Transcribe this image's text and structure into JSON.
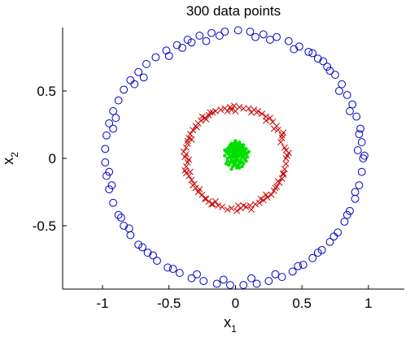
{
  "chart_data": {
    "type": "scatter",
    "title": "300 data points",
    "xlabel": {
      "base": "x",
      "sub": "1"
    },
    "ylabel": {
      "base": "x",
      "sub": "2"
    },
    "xlim": [
      -1.3,
      1.27
    ],
    "ylim": [
      -0.97,
      0.97
    ],
    "xticks": [
      -1,
      -0.5,
      0,
      0.5,
      1
    ],
    "yticks": [
      -0.5,
      0,
      0.5
    ],
    "xtick_labels": [
      "-1",
      "-0.5",
      "0",
      "0.5",
      "1"
    ],
    "ytick_labels": [
      "-0.5",
      "0",
      "0.5"
    ],
    "grid": false,
    "axes_box": "left-bottom",
    "series": [
      {
        "marker": "circle",
        "color": "#0000c8",
        "points": [
          [
            0.96,
            0.0
          ],
          [
            0.95,
            0.12
          ],
          [
            0.94,
            0.22
          ],
          [
            0.91,
            0.31
          ],
          [
            0.88,
            0.4
          ],
          [
            0.84,
            0.47
          ],
          [
            0.8,
            0.55
          ],
          [
            0.75,
            0.62
          ],
          [
            0.69,
            0.68
          ],
          [
            0.62,
            0.74
          ],
          [
            0.55,
            0.79
          ],
          [
            0.48,
            0.83
          ],
          [
            0.4,
            0.87
          ],
          [
            0.31,
            0.9
          ],
          [
            0.21,
            0.92
          ],
          [
            0.11,
            0.94
          ],
          [
            0.02,
            0.95
          ],
          [
            -0.08,
            0.94
          ],
          [
            -0.18,
            0.93
          ],
          [
            -0.27,
            0.91
          ],
          [
            -0.36,
            0.88
          ],
          [
            -0.44,
            0.84
          ],
          [
            -0.52,
            0.8
          ],
          [
            -0.6,
            0.75
          ],
          [
            -0.67,
            0.7
          ],
          [
            -0.73,
            0.64
          ],
          [
            -0.79,
            0.58
          ],
          [
            -0.84,
            0.51
          ],
          [
            -0.88,
            0.43
          ],
          [
            -0.92,
            0.35
          ],
          [
            -0.95,
            0.26
          ],
          [
            -0.97,
            0.17
          ],
          [
            -0.98,
            0.07
          ],
          [
            -0.98,
            -0.03
          ],
          [
            -0.97,
            -0.13
          ],
          [
            -0.95,
            -0.23
          ],
          [
            -0.92,
            -0.33
          ],
          [
            -0.88,
            -0.42
          ],
          [
            -0.84,
            -0.5
          ],
          [
            -0.79,
            -0.57
          ],
          [
            -0.73,
            -0.64
          ],
          [
            -0.66,
            -0.7
          ],
          [
            -0.59,
            -0.76
          ],
          [
            -0.51,
            -0.81
          ],
          [
            -0.42,
            -0.85
          ],
          [
            -0.33,
            -0.89
          ],
          [
            -0.24,
            -0.91
          ],
          [
            -0.14,
            -0.93
          ],
          [
            -0.04,
            -0.94
          ],
          [
            0.06,
            -0.94
          ],
          [
            0.16,
            -0.93
          ],
          [
            0.25,
            -0.91
          ],
          [
            0.35,
            -0.88
          ],
          [
            0.43,
            -0.84
          ],
          [
            0.51,
            -0.79
          ],
          [
            0.58,
            -0.74
          ],
          [
            0.65,
            -0.68
          ],
          [
            0.71,
            -0.62
          ],
          [
            0.77,
            -0.55
          ],
          [
            0.82,
            -0.47
          ],
          [
            0.86,
            -0.39
          ],
          [
            0.9,
            -0.3
          ],
          [
            0.93,
            -0.2
          ],
          [
            0.95,
            -0.1
          ],
          [
            0.92,
            0.06
          ],
          [
            0.86,
            0.35
          ],
          [
            0.71,
            0.65
          ],
          [
            0.44,
            0.81
          ],
          [
            0.15,
            0.9
          ],
          [
            -0.22,
            0.87
          ],
          [
            -0.5,
            0.76
          ],
          [
            -0.76,
            0.55
          ],
          [
            -0.92,
            0.22
          ],
          [
            -0.95,
            -0.1
          ],
          [
            -0.86,
            -0.44
          ],
          [
            -0.62,
            -0.72
          ],
          [
            -0.29,
            -0.86
          ],
          [
            0.12,
            -0.89
          ],
          [
            0.47,
            -0.8
          ],
          [
            0.74,
            -0.58
          ],
          [
            0.9,
            -0.25
          ],
          [
            0.93,
            0.18
          ],
          [
            0.78,
            0.5
          ],
          [
            0.58,
            0.78
          ],
          [
            0.26,
            0.88
          ],
          [
            -0.12,
            0.91
          ],
          [
            -0.4,
            0.82
          ],
          [
            -0.69,
            0.6
          ],
          [
            -0.9,
            0.3
          ],
          [
            -0.93,
            -0.2
          ],
          [
            -0.8,
            -0.52
          ],
          [
            -0.47,
            -0.82
          ],
          [
            -0.09,
            -0.9
          ],
          [
            0.3,
            -0.86
          ],
          [
            0.62,
            -0.7
          ],
          [
            0.84,
            -0.42
          ],
          [
            0.97,
            0.02
          ],
          [
            0.66,
            0.72
          ],
          [
            -0.33,
            0.86
          ],
          [
            -0.7,
            -0.66
          ]
        ]
      },
      {
        "marker": "x",
        "color": "#c80000",
        "points": [
          [
            0.38,
            0.0
          ],
          [
            0.37,
            0.08
          ],
          [
            0.35,
            0.15
          ],
          [
            0.32,
            0.21
          ],
          [
            0.28,
            0.27
          ],
          [
            0.23,
            0.31
          ],
          [
            0.17,
            0.35
          ],
          [
            0.1,
            0.37
          ],
          [
            0.03,
            0.38
          ],
          [
            -0.04,
            0.38
          ],
          [
            -0.11,
            0.36
          ],
          [
            -0.17,
            0.34
          ],
          [
            -0.23,
            0.3
          ],
          [
            -0.28,
            0.26
          ],
          [
            -0.32,
            0.21
          ],
          [
            -0.35,
            0.15
          ],
          [
            -0.37,
            0.08
          ],
          [
            -0.38,
            0.01
          ],
          [
            -0.37,
            -0.06
          ],
          [
            -0.35,
            -0.13
          ],
          [
            -0.32,
            -0.2
          ],
          [
            -0.28,
            -0.25
          ],
          [
            -0.23,
            -0.3
          ],
          [
            -0.17,
            -0.34
          ],
          [
            -0.1,
            -0.36
          ],
          [
            -0.03,
            -0.37
          ],
          [
            0.04,
            -0.37
          ],
          [
            0.11,
            -0.35
          ],
          [
            0.18,
            -0.33
          ],
          [
            0.24,
            -0.29
          ],
          [
            0.29,
            -0.24
          ],
          [
            0.33,
            -0.18
          ],
          [
            0.36,
            -0.11
          ],
          [
            0.38,
            -0.04
          ],
          [
            0.4,
            0.04
          ],
          [
            0.36,
            0.19
          ],
          [
            0.26,
            0.3
          ],
          [
            0.14,
            0.36
          ],
          [
            -0.01,
            0.39
          ],
          [
            -0.15,
            0.35
          ],
          [
            -0.26,
            0.28
          ],
          [
            -0.34,
            0.18
          ],
          [
            -0.39,
            0.05
          ],
          [
            -0.38,
            -0.09
          ],
          [
            -0.3,
            -0.22
          ],
          [
            -0.2,
            -0.32
          ],
          [
            -0.06,
            -0.38
          ],
          [
            0.08,
            -0.36
          ],
          [
            0.21,
            -0.31
          ],
          [
            0.31,
            -0.21
          ],
          [
            0.37,
            -0.08
          ],
          [
            0.34,
            0.12
          ],
          [
            0.2,
            0.33
          ],
          [
            0.06,
            0.37
          ],
          [
            -0.08,
            0.37
          ],
          [
            -0.2,
            0.32
          ],
          [
            -0.3,
            0.24
          ],
          [
            -0.36,
            0.11
          ],
          [
            -0.36,
            -0.03
          ],
          [
            -0.33,
            -0.16
          ],
          [
            -0.25,
            -0.27
          ],
          [
            -0.13,
            -0.35
          ],
          [
            0.01,
            -0.39
          ],
          [
            0.15,
            -0.34
          ],
          [
            0.27,
            -0.27
          ],
          [
            0.35,
            -0.15
          ],
          [
            0.39,
            0.02
          ],
          [
            0.31,
            0.24
          ],
          [
            0.12,
            0.34
          ],
          [
            -0.06,
            0.35
          ],
          [
            -0.22,
            0.29
          ],
          [
            -0.33,
            0.14
          ],
          [
            -0.35,
            -0.01
          ],
          [
            -0.31,
            -0.19
          ],
          [
            -0.18,
            -0.34
          ],
          [
            0.02,
            -0.35
          ],
          [
            0.19,
            -0.3
          ],
          [
            0.32,
            -0.17
          ],
          [
            0.38,
            0.06
          ],
          [
            0.29,
            0.22
          ],
          [
            0.16,
            0.34
          ],
          [
            -0.03,
            0.36
          ],
          [
            -0.19,
            0.34
          ],
          [
            -0.29,
            0.23
          ],
          [
            -0.37,
            0.03
          ],
          [
            -0.34,
            -0.1
          ],
          [
            -0.27,
            -0.23
          ],
          [
            -0.15,
            -0.32
          ],
          [
            0.06,
            -0.35
          ],
          [
            0.23,
            -0.27
          ],
          [
            0.36,
            -0.12
          ],
          [
            0.35,
            0.17
          ],
          [
            0.23,
            0.28
          ],
          [
            0.0,
            0.35
          ],
          [
            -0.25,
            0.31
          ],
          [
            -0.36,
            0.13
          ],
          [
            -0.37,
            -0.11
          ],
          [
            -0.22,
            -0.3
          ],
          [
            0.12,
            -0.38
          ],
          [
            0.3,
            -0.22
          ]
        ]
      },
      {
        "marker": "star",
        "color": "#00e000",
        "points": [
          [
            0.0,
            0.03
          ],
          [
            0.02,
            0.05
          ],
          [
            -0.03,
            0.02
          ],
          [
            0.05,
            0.01
          ],
          [
            -0.01,
            -0.02
          ],
          [
            0.03,
            -0.04
          ],
          [
            -0.05,
            0.04
          ],
          [
            0.01,
            0.08
          ],
          [
            0.06,
            0.05
          ],
          [
            -0.02,
            0.06
          ],
          [
            0.04,
            0.1
          ],
          [
            -0.04,
            -0.03
          ],
          [
            0.07,
            -0.01
          ],
          [
            -0.06,
            0.0
          ],
          [
            0.0,
            -0.05
          ],
          [
            0.02,
            0.01
          ],
          [
            -0.01,
            0.04
          ],
          [
            0.03,
            0.07
          ],
          [
            -0.03,
            0.08
          ],
          [
            0.05,
            -0.03
          ],
          [
            0.08,
            0.03
          ],
          [
            -0.07,
            0.05
          ],
          [
            0.01,
            -0.07
          ],
          [
            -0.02,
            -0.06
          ],
          [
            0.04,
            0.04
          ],
          [
            0.0,
            0.09
          ],
          [
            0.06,
            0.08
          ],
          [
            -0.05,
            -0.05
          ],
          [
            0.02,
            -0.02
          ],
          [
            -0.04,
            0.07
          ],
          [
            0.07,
            0.06
          ],
          [
            0.03,
            0.12
          ],
          [
            -0.01,
            0.11
          ],
          [
            0.09,
            0.01
          ],
          [
            -0.08,
            0.02
          ],
          [
            0.05,
            -0.06
          ],
          [
            -0.03,
            -0.08
          ],
          [
            0.0,
            0.0
          ],
          [
            0.02,
            0.09
          ],
          [
            -0.02,
            0.01
          ],
          [
            0.04,
            -0.01
          ],
          [
            -0.06,
            0.07
          ],
          [
            0.08,
            0.07
          ],
          [
            0.01,
            0.03
          ],
          [
            -0.01,
            -0.04
          ],
          [
            0.03,
            0.02
          ],
          [
            -0.04,
            0.01
          ],
          [
            0.06,
            0.02
          ],
          [
            0.0,
            0.06
          ],
          [
            0.02,
            -0.05
          ],
          [
            -0.03,
            0.05
          ],
          [
            0.05,
            0.06
          ],
          [
            0.01,
            -0.01
          ],
          [
            -0.05,
            0.03
          ],
          [
            0.04,
            0.08
          ],
          [
            -0.02,
            0.09
          ],
          [
            0.07,
            0.04
          ],
          [
            0.03,
            -0.07
          ],
          [
            -0.06,
            -0.02
          ],
          [
            0.0,
            0.13
          ],
          [
            0.1,
            0.05
          ],
          [
            -0.07,
            -0.04
          ],
          [
            0.02,
            0.04
          ],
          [
            -0.01,
            0.07
          ],
          [
            0.05,
            0.03
          ],
          [
            -0.04,
            0.1
          ],
          [
            0.06,
            -0.04
          ],
          [
            0.01,
            0.11
          ],
          [
            -0.03,
            -0.01
          ],
          [
            0.03,
            0.05
          ],
          [
            0.08,
            -0.02
          ],
          [
            -0.08,
            0.06
          ],
          [
            0.0,
            0.02
          ],
          [
            0.04,
            0.06
          ],
          [
            -0.02,
            -0.03
          ],
          [
            0.06,
            0.1
          ],
          [
            -0.05,
            0.08
          ],
          [
            0.02,
            0.07
          ],
          [
            -0.01,
            0.01
          ],
          [
            0.03,
            -0.02
          ],
          [
            0.05,
            0.09
          ],
          [
            -0.04,
            0.05
          ],
          [
            0.07,
            0.0
          ],
          [
            0.01,
            0.05
          ],
          [
            -0.02,
            0.03
          ],
          [
            0.04,
            0.02
          ],
          [
            0.0,
            -0.03
          ],
          [
            -0.06,
            0.04
          ],
          [
            0.09,
            0.04
          ],
          [
            0.02,
            0.1
          ],
          [
            -0.03,
            0.11
          ],
          [
            0.05,
            0.04
          ],
          [
            -0.01,
            0.09
          ],
          [
            0.03,
            0.03
          ],
          [
            0.01,
            0.0
          ],
          [
            -0.05,
            0.06
          ],
          [
            0.06,
            0.07
          ],
          [
            0.0,
            0.1
          ],
          [
            0.04,
            -0.03
          ],
          [
            -0.02,
            0.05
          ]
        ]
      }
    ]
  }
}
